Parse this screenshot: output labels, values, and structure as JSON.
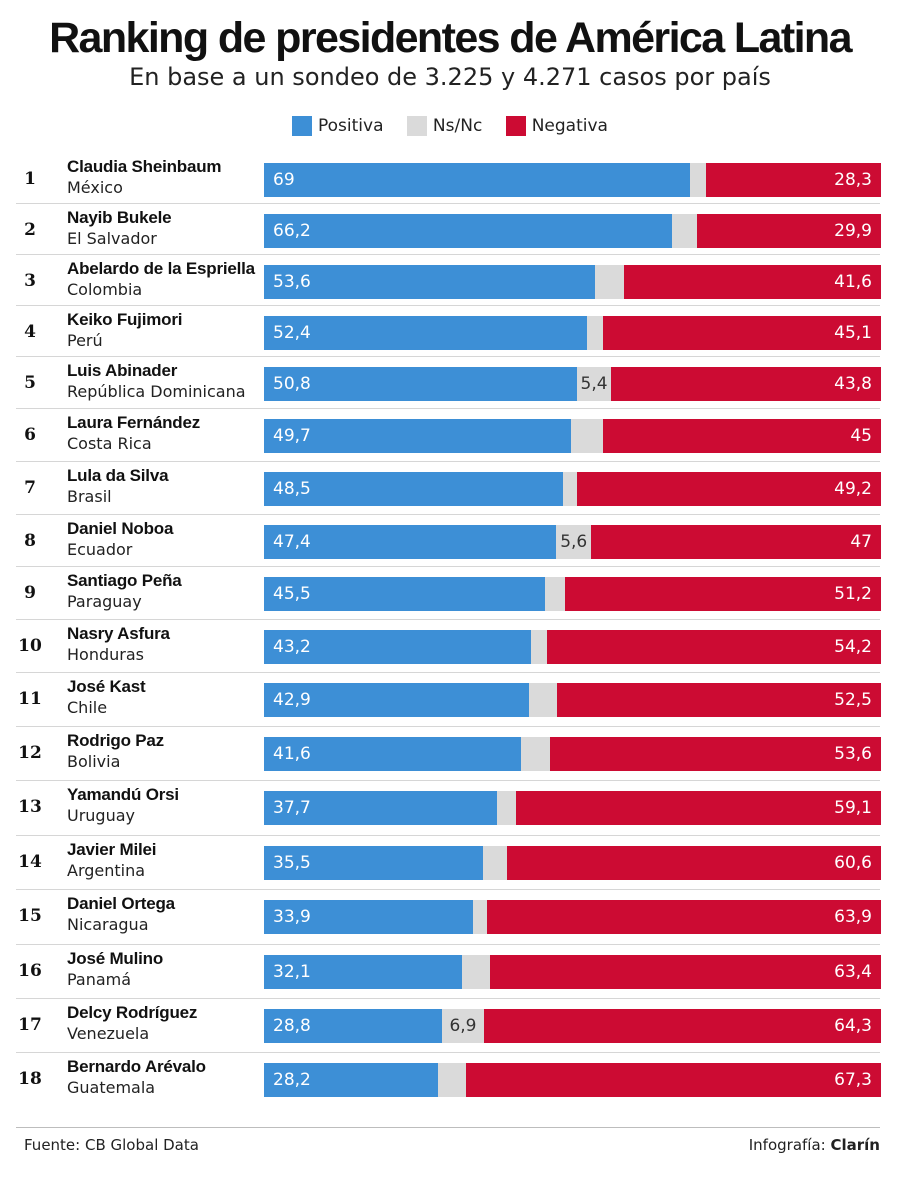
{
  "title": "Ranking de presidentes de América Latina",
  "subtitle": "En base a un sondeo de 3.225 y 4.271 casos por país",
  "legend": [
    {
      "label": "Positiva",
      "color": "#3d8fd6"
    },
    {
      "label": "Ns/Nc",
      "color": "#dadada"
    },
    {
      "label": "Negativa",
      "color": "#cc0b33"
    }
  ],
  "footer": {
    "source": "Fuente: CB Global Data",
    "credit_prefix": "Infografía:",
    "credit_brand": "Clarín"
  },
  "chart_data": {
    "type": "bar",
    "stacked": true,
    "orientation": "horizontal",
    "xlim": [
      0,
      100
    ],
    "series_colors": {
      "positiva": "#3d8fd6",
      "nsnc": "#dadada",
      "negativa": "#cc0b33"
    },
    "rows": [
      {
        "rank": "1",
        "name": "Claudia Sheinbaum",
        "country": "México",
        "positiva": 69,
        "positiva_label": "69",
        "nsnc": 2.7,
        "nsnc_label": "",
        "negativa": 28.3,
        "negativa_label": "28,3"
      },
      {
        "rank": "2",
        "name": "Nayib Bukele",
        "country": "El Salvador",
        "positiva": 66.2,
        "positiva_label": "66,2",
        "nsnc": 3.9,
        "nsnc_label": "",
        "negativa": 29.9,
        "negativa_label": "29,9"
      },
      {
        "rank": "3",
        "name": "Abelardo de la Espriella",
        "country": "Colombia",
        "positiva": 53.6,
        "positiva_label": "53,6",
        "nsnc": 4.8,
        "nsnc_label": "",
        "negativa": 41.6,
        "negativa_label": "41,6"
      },
      {
        "rank": "4",
        "name": "Keiko Fujimori",
        "country": "Perú",
        "positiva": 52.4,
        "positiva_label": "52,4",
        "nsnc": 2.5,
        "nsnc_label": "",
        "negativa": 45.1,
        "negativa_label": "45,1"
      },
      {
        "rank": "5",
        "name": "Luis Abinader",
        "country": "República Dominicana",
        "positiva": 50.8,
        "positiva_label": "50,8",
        "nsnc": 5.4,
        "nsnc_label": "5,4",
        "negativa": 43.8,
        "negativa_label": "43,8"
      },
      {
        "rank": "6",
        "name": "Laura Fernández",
        "country": "Costa Rica",
        "positiva": 49.7,
        "positiva_label": "49,7",
        "nsnc": 5.3,
        "nsnc_label": "",
        "negativa": 45,
        "negativa_label": "45"
      },
      {
        "rank": "7",
        "name": "Lula da Silva",
        "country": "Brasil",
        "positiva": 48.5,
        "positiva_label": "48,5",
        "nsnc": 2.3,
        "nsnc_label": "",
        "negativa": 49.2,
        "negativa_label": "49,2"
      },
      {
        "rank": "8",
        "name": "Daniel Noboa",
        "country": "Ecuador",
        "positiva": 47.4,
        "positiva_label": "47,4",
        "nsnc": 5.6,
        "nsnc_label": "5,6",
        "negativa": 47,
        "negativa_label": "47"
      },
      {
        "rank": "9",
        "name": "Santiago Peña",
        "country": "Paraguay",
        "positiva": 45.5,
        "positiva_label": "45,5",
        "nsnc": 3.3,
        "nsnc_label": "",
        "negativa": 51.2,
        "negativa_label": "51,2"
      },
      {
        "rank": "10",
        "name": "Nasry Asfura",
        "country": "Honduras",
        "positiva": 43.2,
        "positiva_label": "43,2",
        "nsnc": 2.6,
        "nsnc_label": "",
        "negativa": 54.2,
        "negativa_label": "54,2"
      },
      {
        "rank": "11",
        "name": "José Kast",
        "country": "Chile",
        "positiva": 42.9,
        "positiva_label": "42,9",
        "nsnc": 4.6,
        "nsnc_label": "",
        "negativa": 52.5,
        "negativa_label": "52,5"
      },
      {
        "rank": "12",
        "name": "Rodrigo Paz",
        "country": "Bolivia",
        "positiva": 41.6,
        "positiva_label": "41,6",
        "nsnc": 4.8,
        "nsnc_label": "",
        "negativa": 53.6,
        "negativa_label": "53,6"
      },
      {
        "rank": "13",
        "name": "Yamandú Orsi",
        "country": "Uruguay",
        "positiva": 37.7,
        "positiva_label": "37,7",
        "nsnc": 3.2,
        "nsnc_label": "",
        "negativa": 59.1,
        "negativa_label": "59,1"
      },
      {
        "rank": "14",
        "name": "Javier Milei",
        "country": "Argentina",
        "positiva": 35.5,
        "positiva_label": "35,5",
        "nsnc": 3.9,
        "nsnc_label": "",
        "negativa": 60.6,
        "negativa_label": "60,6"
      },
      {
        "rank": "15",
        "name": "Daniel Ortega",
        "country": "Nicaragua",
        "positiva": 33.9,
        "positiva_label": "33,9",
        "nsnc": 2.2,
        "nsnc_label": "",
        "negativa": 63.9,
        "negativa_label": "63,9"
      },
      {
        "rank": "16",
        "name": "José Mulino",
        "country": "Panamá",
        "positiva": 32.1,
        "positiva_label": "32,1",
        "nsnc": 4.5,
        "nsnc_label": "",
        "negativa": 63.4,
        "negativa_label": "63,4"
      },
      {
        "rank": "17",
        "name": "Delcy Rodríguez",
        "country": "Venezuela",
        "positiva": 28.8,
        "positiva_label": "28,8",
        "nsnc": 6.9,
        "nsnc_label": "6,9",
        "negativa": 64.3,
        "negativa_label": "64,3"
      },
      {
        "rank": "18",
        "name": "Bernardo Arévalo",
        "country": "Guatemala",
        "positiva": 28.2,
        "positiva_label": "28,2",
        "nsnc": 4.5,
        "nsnc_label": "",
        "negativa": 67.3,
        "negativa_label": "67,3"
      }
    ]
  }
}
